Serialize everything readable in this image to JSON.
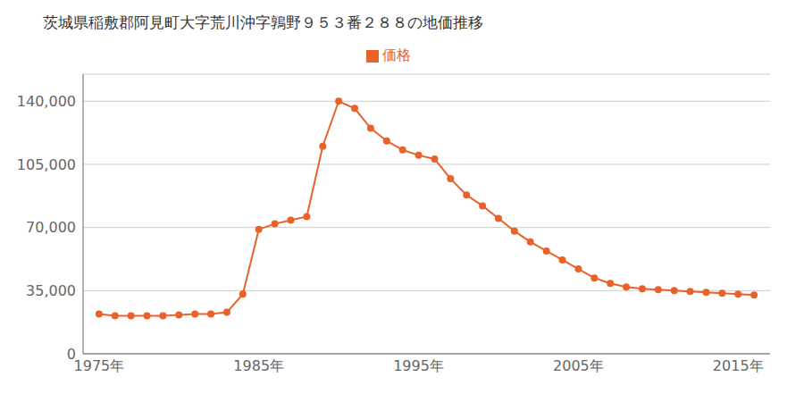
{
  "chart_data": {
    "type": "line",
    "title": "茨城県稲敷郡阿見町大字荒川沖字鶉野９５３番２８８の地価推移",
    "x": [
      1975,
      1976,
      1977,
      1978,
      1979,
      1980,
      1981,
      1982,
      1983,
      1984,
      1985,
      1986,
      1987,
      1988,
      1989,
      1990,
      1991,
      1992,
      1993,
      1994,
      1995,
      1996,
      1997,
      1998,
      1999,
      2000,
      2001,
      2002,
      2003,
      2004,
      2005,
      2006,
      2007,
      2008,
      2009,
      2010,
      2011,
      2012,
      2013,
      2014,
      2015,
      2016
    ],
    "series": [
      {
        "name": "価格",
        "color": "#e8622a",
        "marker": "circle",
        "values": [
          22000,
          21000,
          21000,
          21000,
          21000,
          21500,
          22000,
          22000,
          23000,
          33000,
          69000,
          72000,
          74000,
          76000,
          115000,
          140000,
          136000,
          125000,
          118000,
          113000,
          110000,
          108000,
          97000,
          88000,
          82000,
          75000,
          68000,
          62000,
          57000,
          52000,
          47000,
          42000,
          39000,
          37000,
          36000,
          35500,
          35000,
          34500,
          34000,
          33500,
          33000,
          32500
        ]
      }
    ],
    "xlim": [
      1974,
      2017
    ],
    "xticks": [
      {
        "value": 1975,
        "label": "1975年"
      },
      {
        "value": 1985,
        "label": "1985年"
      },
      {
        "value": 1995,
        "label": "1995年"
      },
      {
        "value": 2005,
        "label": "2005年"
      },
      {
        "value": 2015,
        "label": "2015年"
      }
    ],
    "ylim": [
      0,
      155000
    ],
    "yticks": [
      0,
      {
        "value": 35000,
        "label": "35,000"
      },
      {
        "value": 70000,
        "label": "70,000"
      },
      {
        "value": 105000,
        "label": "105,000"
      },
      {
        "value": 140000,
        "label": "140,000"
      }
    ],
    "grid": true,
    "legend": "top"
  }
}
